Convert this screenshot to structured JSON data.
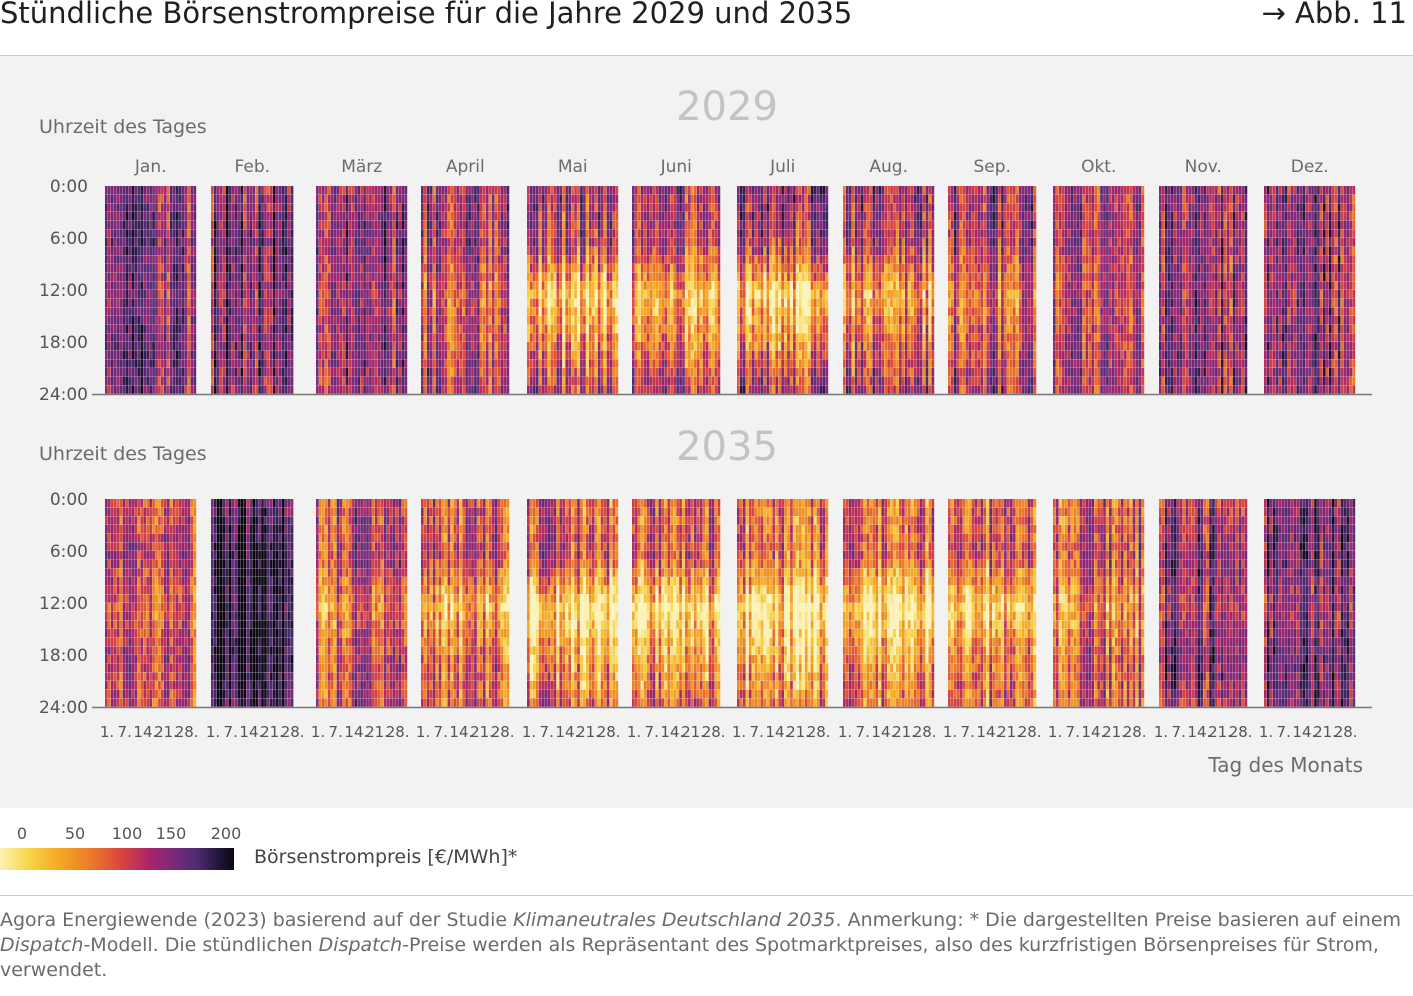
{
  "header": {
    "title": "Stündliche Börsenstrompreise für die Jahre 2029 und 2035",
    "figure_ref": "→ Abb. 11"
  },
  "legend": {
    "ticks": [
      "0",
      "50",
      "100",
      "150",
      "200"
    ],
    "label": "Börsenstrompreis [€/MWh]*",
    "colors": [
      "#fcf3b5",
      "#f8d54a",
      "#f5a623",
      "#ec7d28",
      "#d9443e",
      "#a8256a",
      "#7b2a7a",
      "#4f2b74",
      "#24163d",
      "#0b0610"
    ]
  },
  "source": {
    "part1": "Agora Energiewende (2023) basierend auf der Studie ",
    "study": "Klimaneutrales Deutschland 2035",
    "part2": ". Anmerkung: * Die dargestellten Preise basieren auf einem ",
    "dispatch1": "Dispatch",
    "part3": "-Modell. Die stündlichen ",
    "dispatch2": "Dispatch",
    "part4": "-Preise werden als Repräsentant des Spotmarktpreises, also des kurzfristigen Börsenpreises für Strom, verwendet."
  },
  "chart_data": {
    "type": "heatmap",
    "panels": [
      {
        "title": "2029",
        "ylabel": "Uhrzeit des Tages",
        "monthly_profile_eur_mwh": [
          [
            125,
            130,
            120,
            108,
            110,
            118,
            126,
            118,
            120,
            114,
            118,
            122
          ],
          [
            130,
            148,
            130,
            112,
            100,
            106,
            108,
            106,
            115,
            112,
            124,
            126
          ],
          [
            120,
            136,
            118,
            82,
            18,
            40,
            18,
            48,
            78,
            102,
            116,
            118
          ],
          [
            132,
            142,
            124,
            96,
            60,
            72,
            60,
            82,
            98,
            112,
            128,
            130
          ]
        ]
      },
      {
        "title": "2035",
        "ylabel": "Uhrzeit des Tages",
        "monthly_profile_eur_mwh": [
          [
            90,
            160,
            100,
            85,
            80,
            80,
            75,
            80,
            82,
            85,
            115,
            140
          ],
          [
            110,
            190,
            110,
            100,
            95,
            90,
            80,
            90,
            95,
            100,
            140,
            150
          ],
          [
            80,
            185,
            70,
            40,
            10,
            10,
            10,
            10,
            25,
            60,
            120,
            125
          ],
          [
            105,
            195,
            100,
            80,
            45,
            50,
            45,
            60,
            70,
            90,
            145,
            150
          ]
        ]
      }
    ],
    "profile_hours": [
      "0:00",
      "6:00",
      "12:00",
      "18:00"
    ],
    "y_ticks": [
      "0:00",
      "6:00",
      "12:00",
      "18:00",
      "24:00"
    ],
    "y_range_hours": [
      0,
      24
    ],
    "months": [
      "Jan.",
      "Feb.",
      "März",
      "April",
      "Mai",
      "Juni",
      "Juli",
      "Aug.",
      "Sep.",
      "Okt.",
      "Nov.",
      "Dez."
    ],
    "month_days": [
      31,
      28,
      31,
      30,
      31,
      30,
      31,
      31,
      30,
      31,
      30,
      31
    ],
    "x_ticks": [
      "1.",
      "7.",
      "14.",
      "21.",
      "28."
    ],
    "xlabel": "Tag des Monats",
    "color_range": [
      0,
      200
    ],
    "colorbar_label": "Börsenstrompreis [€/MWh]*"
  }
}
